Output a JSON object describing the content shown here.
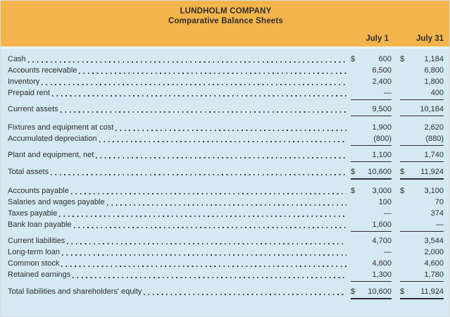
{
  "header": {
    "company": "LUNDHOLM COMPANY",
    "subtitle": "Comparative Balance Sheets",
    "columns": [
      "July 1",
      "July 31"
    ]
  },
  "colors": {
    "header_bg": "#f4b44c",
    "body_bg": "#d5e9f2",
    "text": "#2e2e2e",
    "rule": "#2d2d2d"
  },
  "table": {
    "currency_symbol": "$",
    "rows": [
      {
        "label": "Cash",
        "july1": "600",
        "july31": "1,184",
        "usd": true
      },
      {
        "label": "Accounts receivable",
        "july1": "6,500",
        "july31": "6,800"
      },
      {
        "label": "Inventory",
        "july1": "2,400",
        "july31": "1,800"
      },
      {
        "label": "Prepaid rent",
        "july1": "—",
        "july31": "400",
        "rule": "single"
      },
      {
        "label": "Current assets",
        "july1": "9,500",
        "july31": "10,184",
        "rule": "single",
        "gap": 5
      },
      {
        "label": "Fixtures and equipment at cost",
        "july1": "1,900",
        "july31": "2,620",
        "gap": 8
      },
      {
        "label": "Accumulated depreciation",
        "july1": "(800)",
        "july31": "(880)",
        "rule": "single"
      },
      {
        "label": "Plant and equipment, net",
        "july1": "1,100",
        "july31": "1,740",
        "rule": "single",
        "gap": 5
      },
      {
        "label": "Total assets",
        "july1": "10,600",
        "july31": "11,924",
        "usd": true,
        "rule": "double",
        "gap": 6
      },
      {
        "label": "Accounts payable",
        "july1": "3,000",
        "july31": "3,100",
        "usd": true,
        "gap": 8
      },
      {
        "label": "Salaries and wages payable",
        "july1": "100",
        "july31": "70"
      },
      {
        "label": "Taxes payable",
        "july1": "—",
        "july31": "374"
      },
      {
        "label": "Bank loan payable",
        "july1": "1,600",
        "july31": "—",
        "rule": "single"
      },
      {
        "label": "Current liabilities",
        "july1": "4,700",
        "july31": "3,544",
        "gap": 5
      },
      {
        "label": "Long-term loan",
        "july1": "—",
        "july31": "2,000"
      },
      {
        "label": "Common stock",
        "july1": "4,600",
        "july31": "4,600"
      },
      {
        "label": "Retained earnings",
        "july1": "1,300",
        "july31": "1,780",
        "rule": "single"
      },
      {
        "label": "Total liabilities and shareholders' equity",
        "july1": "10,600",
        "july31": "11,924",
        "usd": true,
        "rule": "double",
        "gap": 6
      }
    ]
  }
}
